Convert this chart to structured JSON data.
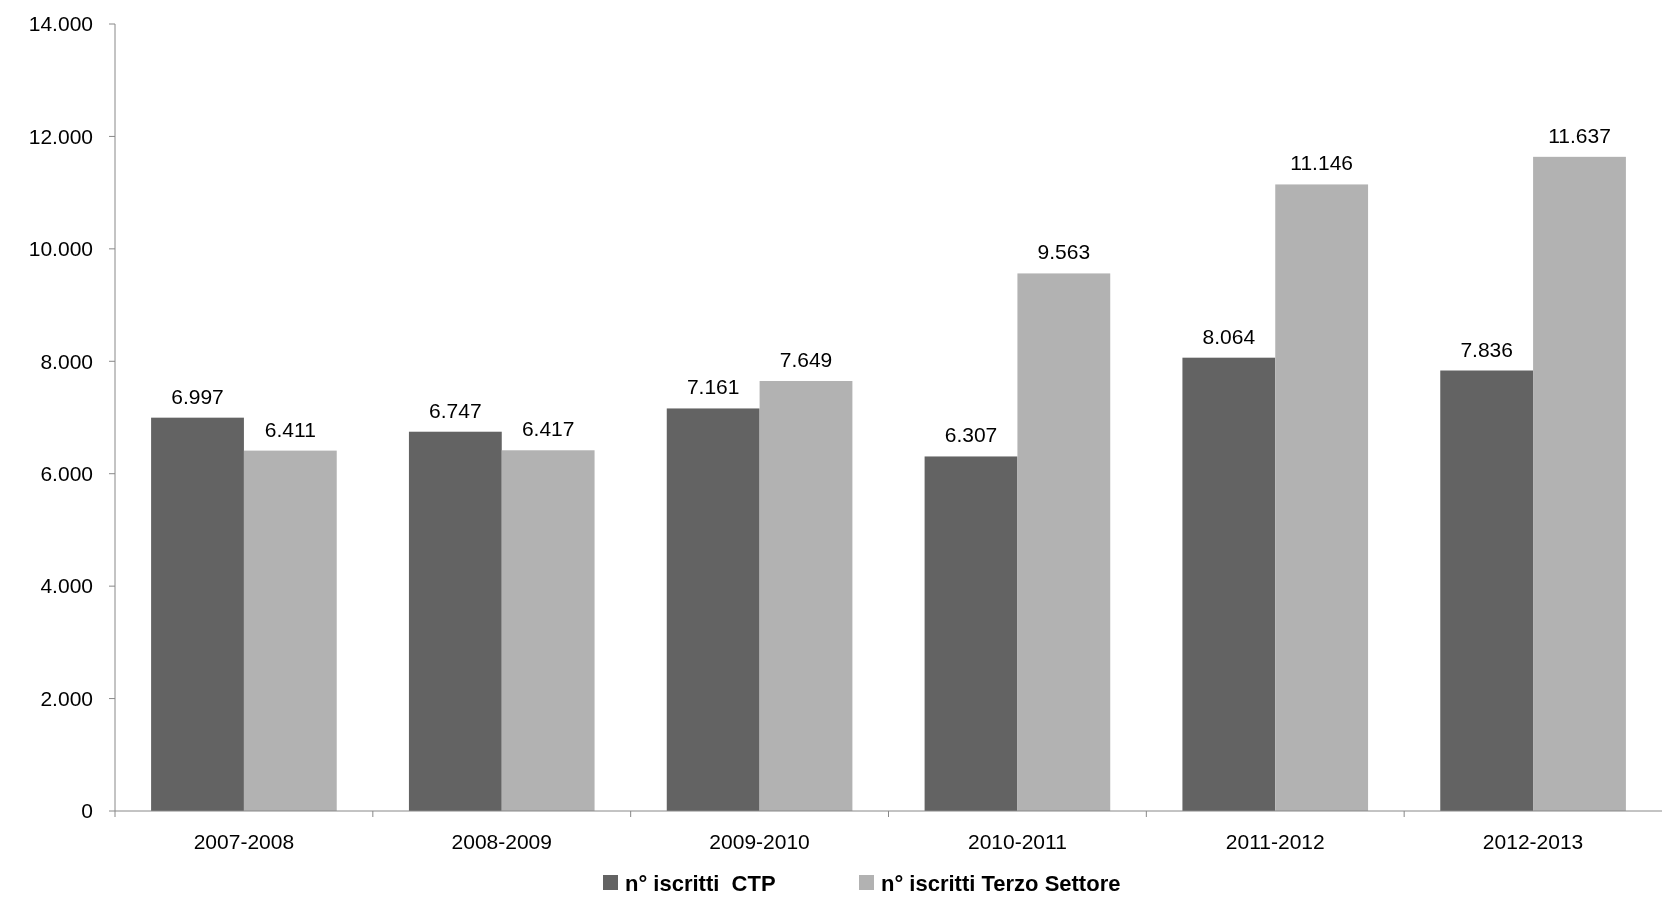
{
  "chart_data": {
    "type": "bar",
    "categories": [
      "2007-2008",
      "2008-2009",
      "2009-2010",
      "2010-2011",
      "2011-2012",
      "2012-2013"
    ],
    "series": [
      {
        "name": "n° iscritti  CTP",
        "color": "#636363",
        "values": [
          6997,
          6747,
          7161,
          6307,
          8064,
          7836
        ],
        "value_labels": [
          "6.997",
          "6.747",
          "7.161",
          "6.307",
          "8.064",
          "7.836"
        ]
      },
      {
        "name": "n° iscritti Terzo Settore",
        "color": "#b2b2b2",
        "values": [
          6411,
          6417,
          7649,
          9563,
          11146,
          11637
        ],
        "value_labels": [
          "6.411",
          "6.417",
          "7.649",
          "9.563",
          "11.146",
          "11.637"
        ]
      }
    ],
    "ylim": [
      0,
      14000
    ],
    "yticks": [
      {
        "value": 0,
        "label": "0"
      },
      {
        "value": 2000,
        "label": "2.000"
      },
      {
        "value": 4000,
        "label": "4.000"
      },
      {
        "value": 6000,
        "label": "6.000"
      },
      {
        "value": 8000,
        "label": "8.000"
      },
      {
        "value": 10000,
        "label": "10.000"
      },
      {
        "value": 12000,
        "label": "12.000"
      },
      {
        "value": 14000,
        "label": "14.000"
      }
    ],
    "legend": "bottom"
  }
}
